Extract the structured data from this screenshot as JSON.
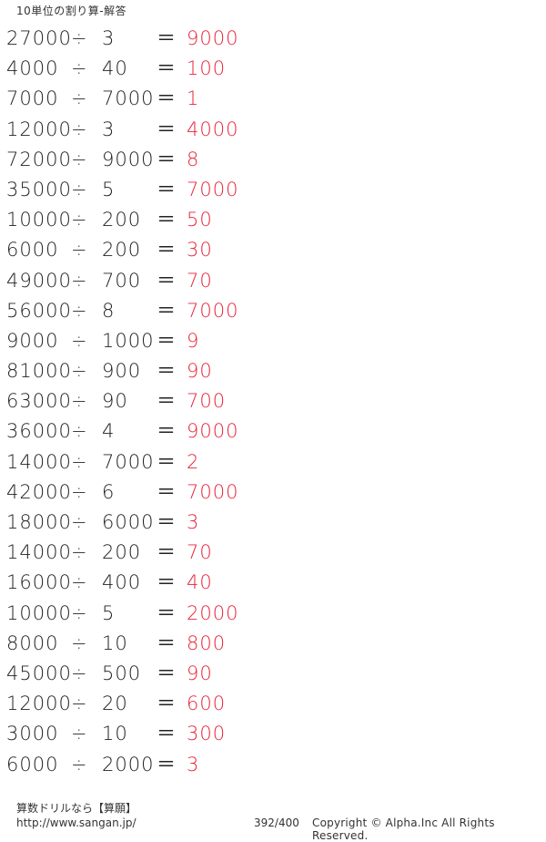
{
  "title": "10単位の割り算-解答",
  "colors": {
    "answer": "#e8243a",
    "text": "#222222"
  },
  "operator": "÷",
  "equals": "＝",
  "problems": [
    {
      "dividend": "27000",
      "divisor": "3",
      "answer": "9000"
    },
    {
      "dividend": "4000",
      "divisor": "40",
      "answer": "100"
    },
    {
      "dividend": "7000",
      "divisor": "7000",
      "answer": "1"
    },
    {
      "dividend": "12000",
      "divisor": "3",
      "answer": "4000"
    },
    {
      "dividend": "72000",
      "divisor": "9000",
      "answer": "8"
    },
    {
      "dividend": "35000",
      "divisor": "5",
      "answer": "7000"
    },
    {
      "dividend": "10000",
      "divisor": "200",
      "answer": "50"
    },
    {
      "dividend": "6000",
      "divisor": "200",
      "answer": "30"
    },
    {
      "dividend": "49000",
      "divisor": "700",
      "answer": "70"
    },
    {
      "dividend": "56000",
      "divisor": "8",
      "answer": "7000"
    },
    {
      "dividend": "9000",
      "divisor": "1000",
      "answer": "9"
    },
    {
      "dividend": "81000",
      "divisor": "900",
      "answer": "90"
    },
    {
      "dividend": "63000",
      "divisor": "90",
      "answer": "700"
    },
    {
      "dividend": "36000",
      "divisor": "4",
      "answer": "9000"
    },
    {
      "dividend": "14000",
      "divisor": "7000",
      "answer": "2"
    },
    {
      "dividend": "42000",
      "divisor": "6",
      "answer": "7000"
    },
    {
      "dividend": "18000",
      "divisor": "6000",
      "answer": "3"
    },
    {
      "dividend": "14000",
      "divisor": "200",
      "answer": "70"
    },
    {
      "dividend": "16000",
      "divisor": "400",
      "answer": "40"
    },
    {
      "dividend": "10000",
      "divisor": "5",
      "answer": "2000"
    },
    {
      "dividend": "8000",
      "divisor": "10",
      "answer": "800"
    },
    {
      "dividend": "45000",
      "divisor": "500",
      "answer": "90"
    },
    {
      "dividend": "12000",
      "divisor": "20",
      "answer": "600"
    },
    {
      "dividend": "3000",
      "divisor": "10",
      "answer": "300"
    },
    {
      "dividend": "6000",
      "divisor": "2000",
      "answer": "3"
    }
  ],
  "footer": {
    "label": "算数ドリルなら【算願】",
    "url": "http://www.sangan.jp/",
    "page": "392/400",
    "copyright": "Copyright © Alpha.Inc All Rights Reserved."
  }
}
